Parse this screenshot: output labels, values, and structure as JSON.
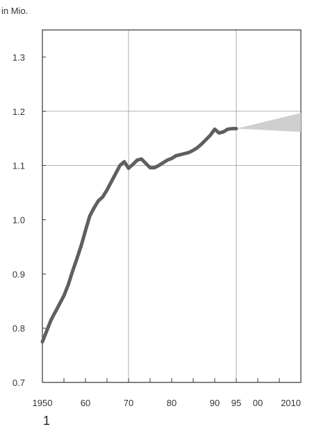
{
  "chart_data": {
    "type": "line",
    "unit_label": "in Mio.",
    "footnote": "1",
    "xlim": [
      1950,
      2010
    ],
    "ylim": [
      0.7,
      1.35
    ],
    "grid": true,
    "y_ticks": [
      {
        "value": 0.7,
        "label": "0.7"
      },
      {
        "value": 0.8,
        "label": "0.8"
      },
      {
        "value": 0.9,
        "label": "0.9"
      },
      {
        "value": 1.0,
        "label": "1.0"
      },
      {
        "value": 1.1,
        "label": "1.1"
      },
      {
        "value": 1.2,
        "label": "1.2"
      },
      {
        "value": 1.3,
        "label": "1.3"
      }
    ],
    "x_ticks": [
      {
        "value": 1950,
        "label": "1950"
      },
      {
        "value": 1960,
        "label": "60"
      },
      {
        "value": 1970,
        "label": "70"
      },
      {
        "value": 1980,
        "label": "80"
      },
      {
        "value": 1990,
        "label": "90"
      },
      {
        "value": 1995,
        "label": "95"
      },
      {
        "value": 2000,
        "label": "00"
      },
      {
        "value": 2010,
        "label": "2010"
      }
    ],
    "x_gridlines": [
      1970,
      1995
    ],
    "y_gridlines": [
      1.1,
      1.2
    ],
    "series": [
      {
        "color": "#5f5f5f",
        "x": [
          1950,
          1951,
          1952,
          1953,
          1954,
          1955,
          1956,
          1957,
          1958,
          1959,
          1960,
          1961,
          1962,
          1963,
          1964,
          1965,
          1966,
          1967,
          1968,
          1969,
          1970,
          1971,
          1972,
          1973,
          1974,
          1975,
          1976,
          1977,
          1978,
          1979,
          1980,
          1981,
          1982,
          1983,
          1984,
          1985,
          1986,
          1987,
          1988,
          1989,
          1990,
          1991,
          1992,
          1993,
          1994,
          1995
        ],
        "y": [
          0.775,
          0.795,
          0.815,
          0.83,
          0.845,
          0.86,
          0.88,
          0.905,
          0.928,
          0.952,
          0.98,
          1.007,
          1.022,
          1.035,
          1.042,
          1.055,
          1.07,
          1.085,
          1.1,
          1.107,
          1.095,
          1.102,
          1.11,
          1.112,
          1.104,
          1.096,
          1.096,
          1.1,
          1.105,
          1.11,
          1.113,
          1.118,
          1.12,
          1.122,
          1.124,
          1.128,
          1.133,
          1.14,
          1.148,
          1.156,
          1.167,
          1.16,
          1.162,
          1.167,
          1.168,
          1.168
        ]
      }
    ],
    "projection_band": {
      "color": "#cfcfcf",
      "x": [
        1995,
        2010
      ],
      "lower": [
        1.168,
        1.162
      ],
      "upper": [
        1.168,
        1.197
      ]
    }
  }
}
